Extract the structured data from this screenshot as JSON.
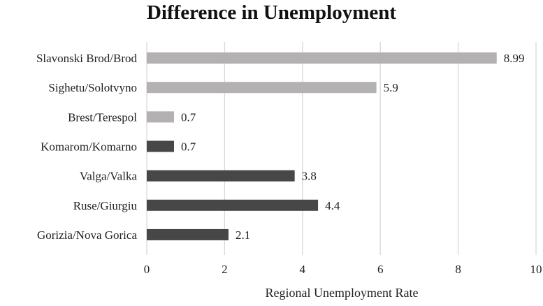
{
  "chart_data": {
    "type": "bar",
    "orientation": "horizontal",
    "title": "Difference in Unemployment",
    "xlabel": "Regional Unemployment Rate",
    "ylabel": "",
    "xlim": [
      0,
      10
    ],
    "xticks": [
      0,
      2,
      4,
      6,
      8,
      10
    ],
    "grid": true,
    "legend": "none",
    "categories": [
      "Slavonski Brod/Brod",
      "Sighetu/Solotvyno",
      "Brest/Terespol",
      "Komarom/Komarno",
      "Valga/Valka",
      "Ruse/Giurgiu",
      "Gorizia/Nova Gorica"
    ],
    "values": [
      8.99,
      5.9,
      0.7,
      0.7,
      3.8,
      4.4,
      2.1
    ],
    "value_labels": [
      "8.99",
      "5.9",
      "0.7",
      "0.7",
      "3.8",
      "4.4",
      "2.1"
    ],
    "bar_colors": [
      "#b3b1b1",
      "#b3b1b1",
      "#b3b1b1",
      "#474747",
      "#474747",
      "#474747",
      "#474747"
    ],
    "gridline_color": "#d9d9d9"
  }
}
